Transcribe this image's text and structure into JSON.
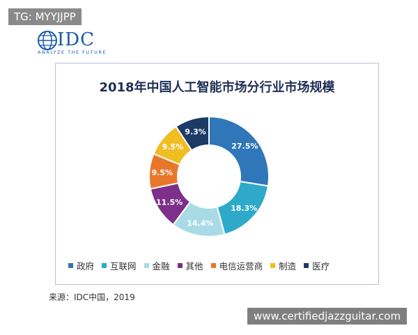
{
  "tg_tag": "TG: MYYJJPP",
  "logo": {
    "name": "IDC",
    "tagline": "ANALYZE THE FUTURE",
    "color": "#1b5aa6"
  },
  "chart_data": {
    "type": "pie",
    "title": "2018年中国人工智能市场分行业市场规模",
    "series": [
      {
        "name": "政府",
        "value": 27.5,
        "label": "27.5%",
        "color": "#2f77b8"
      },
      {
        "name": "互联网",
        "value": 18.3,
        "label": "18.3%",
        "color": "#2fa9c9"
      },
      {
        "name": "金融",
        "value": 14.4,
        "label": "14.4%",
        "color": "#a9dbe6"
      },
      {
        "name": "其他",
        "value": 11.5,
        "label": "11.5%",
        "color": "#7d2f8a"
      },
      {
        "name": "电信运营商",
        "value": 9.5,
        "label": "9.5%",
        "color": "#e8772a"
      },
      {
        "name": "制造",
        "value": 9.5,
        "label": "9.5%",
        "color": "#f0bd23"
      },
      {
        "name": "医疗",
        "value": 9.3,
        "label": "9.3%",
        "color": "#1c3a66"
      }
    ],
    "legend_position": "bottom"
  },
  "source": "来源：IDC中国，2019",
  "watermark": "www.certifiedjazzguitar.com"
}
